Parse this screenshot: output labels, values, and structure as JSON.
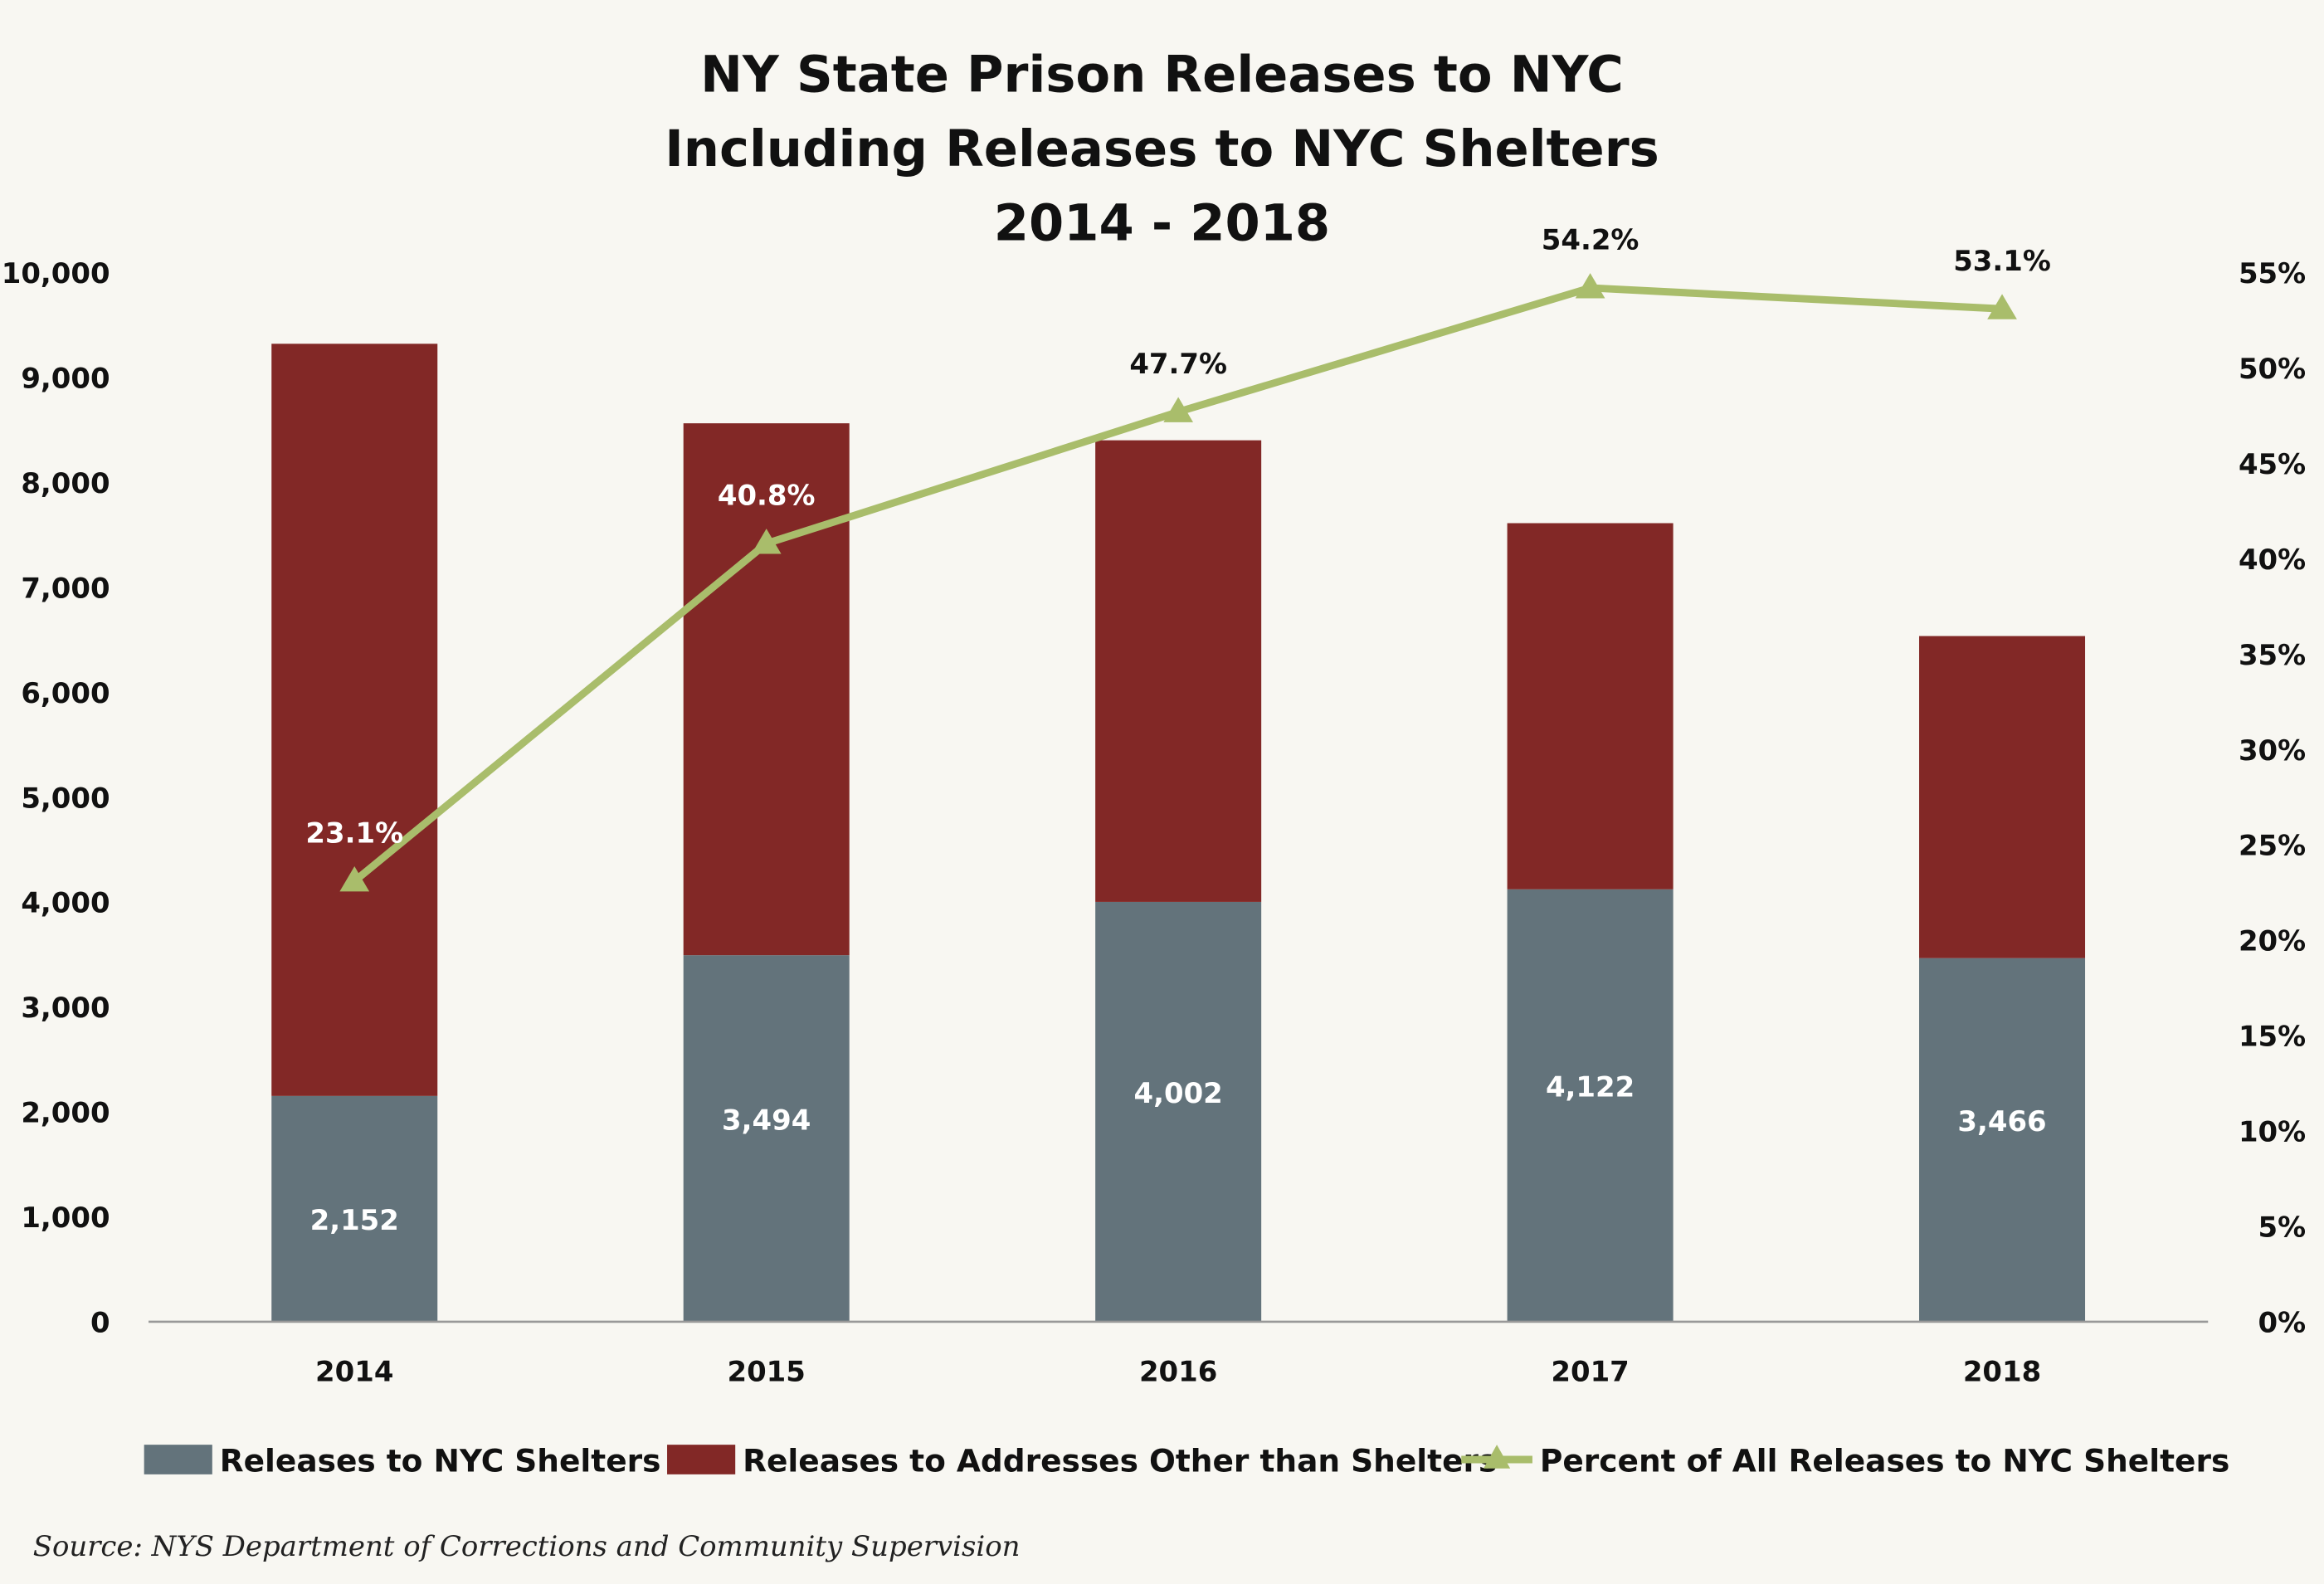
{
  "chart_data": {
    "type": "bar",
    "stacked": true,
    "title_lines": [
      "NY State Prison Releases to NYC",
      "Including Releases to NYC Shelters",
      "2014 - 2018"
    ],
    "categories": [
      "2014",
      "2015",
      "2016",
      "2017",
      "2018"
    ],
    "series": [
      {
        "name": "Releases to NYC Shelters",
        "type": "bar",
        "axis": "left",
        "color": "#63737b",
        "values": [
          2152,
          3494,
          4002,
          4122,
          3466
        ],
        "labels": [
          "2,152",
          "3,494",
          "4,002",
          "4,122",
          "3,466"
        ]
      },
      {
        "name": "Releases to Addresses Other than Shelters",
        "type": "bar",
        "axis": "left",
        "color": "#822826",
        "values": [
          7170,
          5070,
          4400,
          3490,
          3070
        ]
      },
      {
        "name": "Percent of All Releases to NYC Shelters",
        "type": "line",
        "axis": "right",
        "marker": "triangle",
        "color": "#a9bd6b",
        "values": [
          23.1,
          40.8,
          47.7,
          54.2,
          53.1
        ],
        "labels": [
          "23.1%",
          "40.8%",
          "47.7%",
          "54.2%",
          "53.1%"
        ]
      }
    ],
    "yleft": {
      "range": [
        0,
        10000
      ],
      "ticks": [
        "0",
        "1,000",
        "2,000",
        "3,000",
        "4,000",
        "5,000",
        "6,000",
        "7,000",
        "8,000",
        "9,000",
        "10,000"
      ]
    },
    "yright": {
      "range": [
        0,
        55
      ],
      "ticks": [
        "0%",
        "5%",
        "10%",
        "15%",
        "20%",
        "25%",
        "30%",
        "35%",
        "40%",
        "45%",
        "50%",
        "55%"
      ]
    },
    "grid": false,
    "legend_position": "bottom",
    "source": "Source: NYS Department of Corrections and Community Supervision"
  }
}
